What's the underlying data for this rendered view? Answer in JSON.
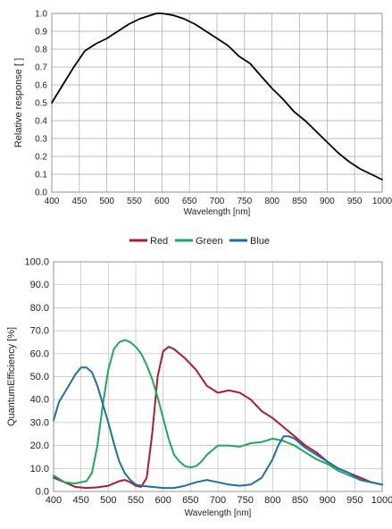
{
  "chart_data": [
    {
      "type": "line",
      "title": "",
      "xlabel": "Wavelength [nm]",
      "ylabel": "Relative response [ ]",
      "xlim": [
        400,
        1000
      ],
      "ylim": [
        0,
        1.0
      ],
      "x_ticks": [
        "400",
        "450",
        "500",
        "550",
        "600",
        "650",
        "700",
        "750",
        "800",
        "850",
        "900",
        "950",
        "1000"
      ],
      "y_ticks": [
        "0.0",
        "0.1",
        "0.2",
        "0.3",
        "0.4",
        "0.5",
        "0.6",
        "0.7",
        "0.8",
        "0.9",
        "1.0"
      ],
      "grid": true,
      "colors": {
        "line": "#000000",
        "grid": "#aaaaaa"
      },
      "series": [
        {
          "x": [
            400,
            420,
            440,
            460,
            480,
            500,
            520,
            540,
            560,
            580,
            590,
            600,
            620,
            640,
            660,
            680,
            700,
            720,
            740,
            760,
            780,
            800,
            820,
            840,
            860,
            880,
            900,
            920,
            940,
            960,
            980,
            1000
          ],
          "y": [
            0.5,
            0.6,
            0.7,
            0.79,
            0.83,
            0.86,
            0.9,
            0.94,
            0.97,
            0.99,
            1.0,
            1.0,
            0.99,
            0.97,
            0.94,
            0.9,
            0.86,
            0.82,
            0.76,
            0.72,
            0.65,
            0.58,
            0.52,
            0.45,
            0.4,
            0.34,
            0.28,
            0.22,
            0.17,
            0.13,
            0.1,
            0.07
          ]
        }
      ]
    },
    {
      "type": "line",
      "title": "",
      "xlabel": "Wavelength [nm]",
      "ylabel": "QuantumEfficiency [%]",
      "xlim": [
        400,
        1000
      ],
      "ylim": [
        0,
        100
      ],
      "x_ticks": [
        "400",
        "450",
        "500",
        "550",
        "600",
        "650",
        "700",
        "750",
        "800",
        "850",
        "900",
        "950",
        "1000"
      ],
      "y_ticks": [
        "0.0",
        "10.0",
        "20.0",
        "30.0",
        "40.0",
        "50.0",
        "60.0",
        "70.0",
        "80.0",
        "90.0",
        "100.0"
      ],
      "grid": true,
      "legend_position": "top",
      "series": [
        {
          "name": "Red",
          "color": "#b01c2e",
          "x": [
            400,
            420,
            440,
            460,
            480,
            500,
            520,
            530,
            540,
            550,
            560,
            570,
            580,
            590,
            600,
            610,
            620,
            640,
            660,
            680,
            700,
            720,
            740,
            760,
            780,
            800,
            820,
            840,
            860,
            880,
            900,
            920,
            940,
            960,
            980,
            1000
          ],
          "y": [
            6,
            4,
            2,
            1.5,
            1.8,
            2.5,
            4.5,
            5,
            4,
            2.5,
            2,
            6,
            25,
            50,
            61,
            63,
            62,
            58,
            53,
            46,
            43,
            44,
            43,
            40,
            35,
            32,
            28,
            24,
            20,
            17,
            13,
            10,
            8,
            6,
            4,
            3
          ]
        },
        {
          "name": "Green",
          "color": "#1fa85a",
          "x": [
            400,
            420,
            440,
            460,
            470,
            480,
            490,
            500,
            510,
            520,
            530,
            540,
            550,
            560,
            570,
            580,
            590,
            600,
            610,
            620,
            630,
            640,
            650,
            660,
            670,
            680,
            700,
            720,
            740,
            760,
            780,
            800,
            820,
            840,
            860,
            880,
            900,
            920,
            940,
            960,
            980,
            1000
          ],
          "y": [
            7,
            4,
            3.5,
            4.5,
            8,
            20,
            38,
            53,
            62,
            65,
            66,
            65,
            63,
            60,
            55,
            49,
            41,
            32,
            23,
            16,
            13,
            11,
            10.5,
            11,
            13,
            16,
            20,
            20,
            19.5,
            21,
            21.5,
            23,
            22,
            20,
            17,
            14,
            12,
            9,
            7,
            5,
            4,
            3
          ]
        },
        {
          "name": "Blue",
          "color": "#1f6fa5",
          "x": [
            400,
            410,
            420,
            430,
            440,
            450,
            460,
            470,
            480,
            490,
            500,
            510,
            520,
            530,
            540,
            550,
            560,
            580,
            600,
            620,
            640,
            660,
            680,
            700,
            720,
            740,
            760,
            780,
            800,
            810,
            820,
            830,
            840,
            860,
            880,
            900,
            920,
            940,
            960,
            980,
            1000
          ],
          "y": [
            31,
            39,
            43,
            47,
            51,
            54,
            54,
            52,
            46,
            38,
            30,
            21,
            13,
            8,
            5,
            3,
            2.5,
            2,
            1.5,
            1.5,
            2.5,
            4,
            5,
            4,
            3,
            2.5,
            3,
            6,
            14,
            20,
            24,
            24,
            23,
            19,
            16,
            13,
            10,
            8,
            5,
            4,
            3
          ]
        }
      ]
    }
  ]
}
